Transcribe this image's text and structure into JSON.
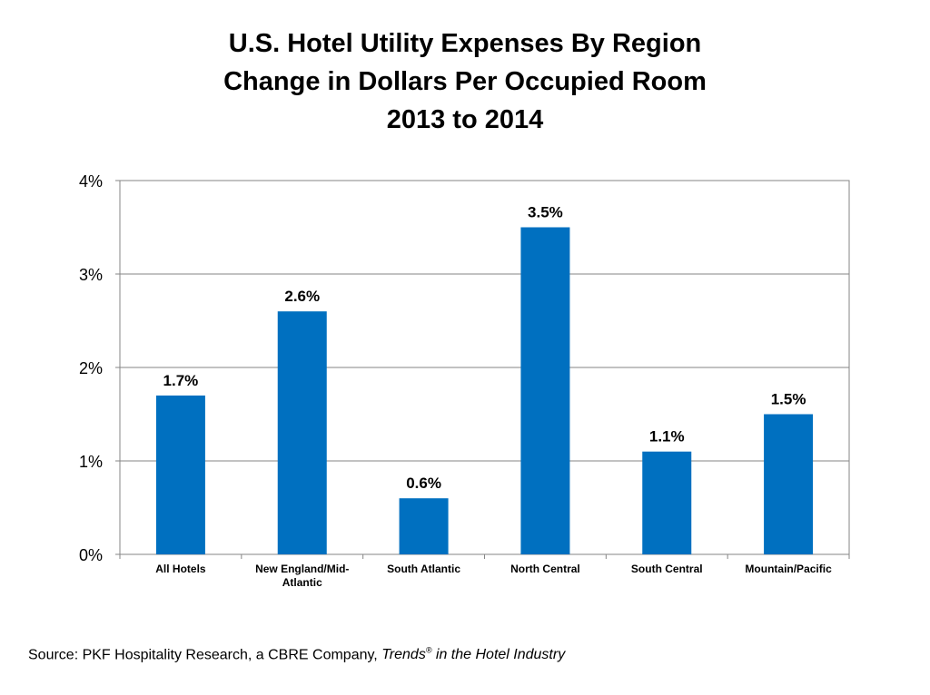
{
  "chart_data": {
    "type": "bar",
    "title": [
      "U.S. Hotel Utility Expenses By Region",
      "Change in Dollars Per Occupied Room",
      "2013 to 2014"
    ],
    "categories": [
      [
        "All Hotels"
      ],
      [
        "New England/Mid-",
        "Atlantic"
      ],
      [
        "South Atlantic"
      ],
      [
        "North Central"
      ],
      [
        "South Central"
      ],
      [
        "Mountain/Pacific"
      ]
    ],
    "values": [
      1.7,
      2.6,
      0.6,
      3.5,
      1.1,
      1.5
    ],
    "data_labels": [
      "1.7%",
      "2.6%",
      "0.6%",
      "3.5%",
      "1.1%",
      "1.5%"
    ],
    "xlabel": "",
    "ylabel": "",
    "ylim": [
      0,
      4
    ],
    "yticks": [
      0,
      1,
      2,
      3,
      4
    ],
    "ytick_labels": [
      "0%",
      "1%",
      "2%",
      "3%",
      "4%"
    ],
    "grid": true,
    "bar_color": "#0070C0"
  },
  "source": {
    "prefix": "Source: PKF Hospitality Research, a CBRE Company,",
    "italic_1": "Trends",
    "mark": "®",
    "italic_2": " in the Hotel Industry"
  }
}
